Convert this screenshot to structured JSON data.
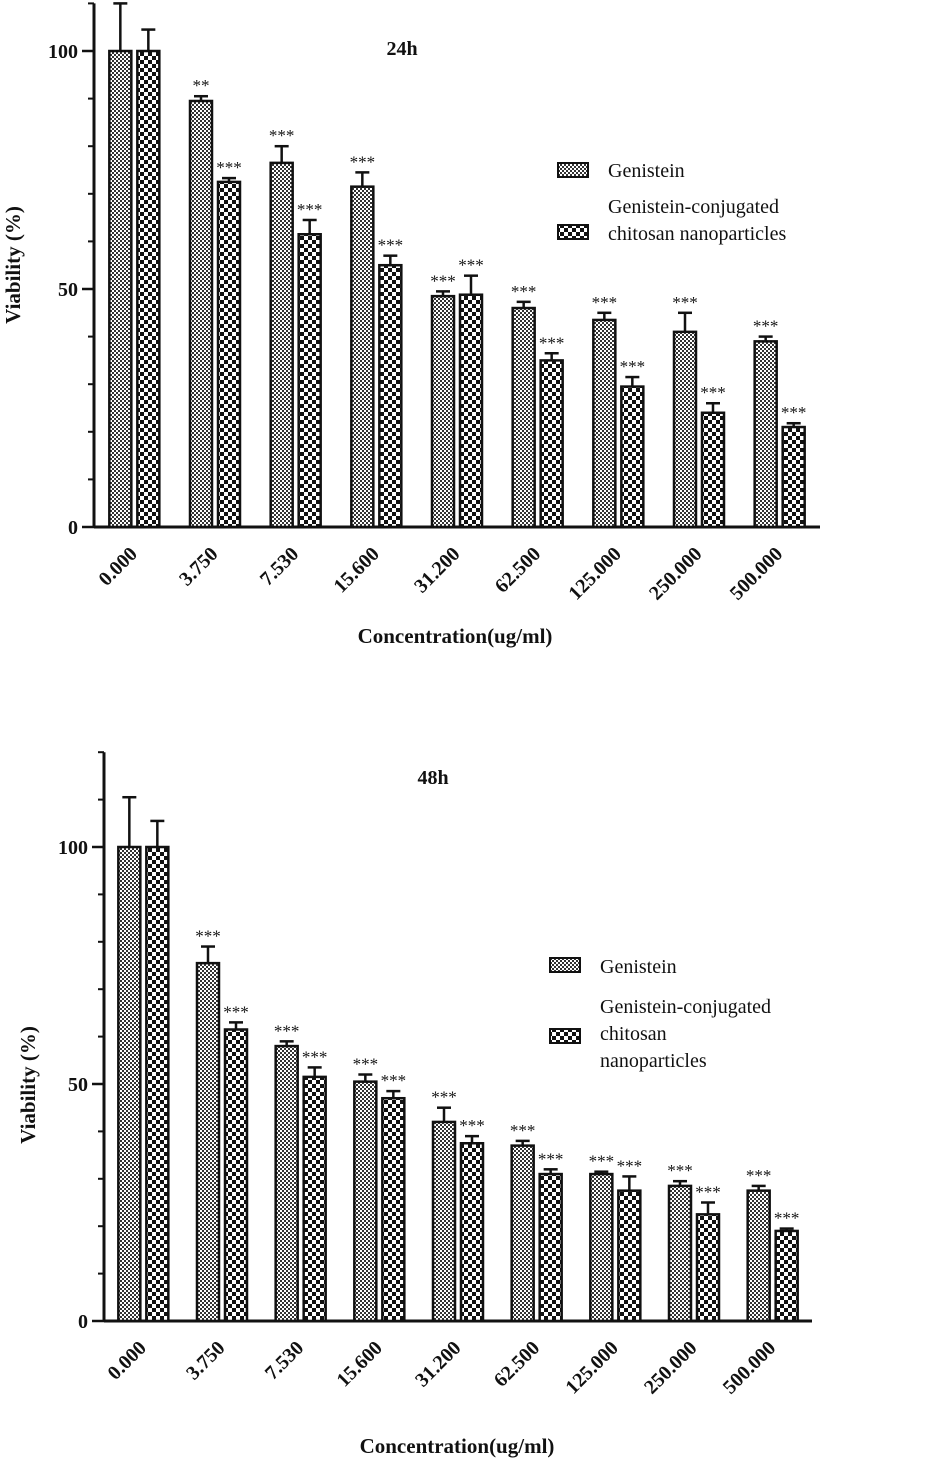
{
  "chart_data": [
    {
      "type": "bar",
      "title": "24h",
      "xlabel": "Concentration(ug/ml)",
      "ylabel": "Viability (%)",
      "categories": [
        "0.000",
        "3.750",
        "7.530",
        "15.600",
        "31.200",
        "62.500",
        "125.000",
        "250.000",
        "500.000"
      ],
      "ylim": [
        0,
        110
      ],
      "yticks": [
        0,
        50,
        100
      ],
      "legend_position": "right",
      "legend_lines": [
        [
          "Genistein"
        ],
        [
          "Genistein-conjugated",
          "chitosan nanoparticles"
        ]
      ],
      "series": [
        {
          "name": "Genistein",
          "pattern": "dense-check",
          "values": [
            100,
            89.5,
            76.5,
            71.5,
            48.5,
            46,
            43.5,
            41,
            39
          ],
          "errors": [
            10,
            1,
            3.5,
            3,
            1,
            1.3,
            1.5,
            4,
            1
          ],
          "significance": [
            "",
            "**",
            "***",
            "***",
            "***",
            "***",
            "***",
            "***",
            "***"
          ]
        },
        {
          "name": "Genistein-conjugated chitosan nanoparticles",
          "pattern": "coarse-check",
          "values": [
            100,
            72.5,
            61.5,
            55,
            48.8,
            35,
            29.5,
            24,
            21
          ],
          "errors": [
            4.5,
            0.8,
            3,
            2,
            4,
            1.5,
            2,
            2,
            0.8
          ],
          "significance": [
            "",
            "***",
            "***",
            "***",
            "***",
            "***",
            "***",
            "***",
            "***"
          ]
        }
      ]
    },
    {
      "type": "bar",
      "title": "48h",
      "xlabel": "Concentration(ug/ml)",
      "ylabel": "Viability (%)",
      "categories": [
        "0.000",
        "3.750",
        "7.530",
        "15.600",
        "31.200",
        "62.500",
        "125.000",
        "250.000",
        "500.000"
      ],
      "ylim": [
        0,
        120
      ],
      "yticks": [
        0,
        50,
        100
      ],
      "legend_position": "right",
      "legend_lines": [
        [
          "Genistein"
        ],
        [
          "Genistein-conjugated",
          "chitosan",
          "nanoparticles"
        ]
      ],
      "series": [
        {
          "name": "Genistein",
          "pattern": "dense-check",
          "values": [
            100,
            75.5,
            58,
            50.5,
            42,
            37,
            31,
            28.5,
            27.5
          ],
          "errors": [
            10.5,
            3.5,
            1,
            1.5,
            3,
            1,
            0.5,
            1,
            1
          ],
          "significance": [
            "",
            "***",
            "***",
            "***",
            "***",
            "***",
            "***",
            "***",
            "***"
          ]
        },
        {
          "name": "Genistein-conjugated chitosan nanoparticles",
          "pattern": "coarse-check",
          "values": [
            100,
            61.5,
            51.5,
            47,
            37.5,
            31,
            27.5,
            22.5,
            19
          ],
          "errors": [
            5.5,
            1.5,
            2,
            1.5,
            1.5,
            1,
            3,
            2.5,
            0.5
          ],
          "significance": [
            "",
            "***",
            "***",
            "***",
            "***",
            "***",
            "***",
            "***",
            "***"
          ]
        }
      ]
    }
  ]
}
